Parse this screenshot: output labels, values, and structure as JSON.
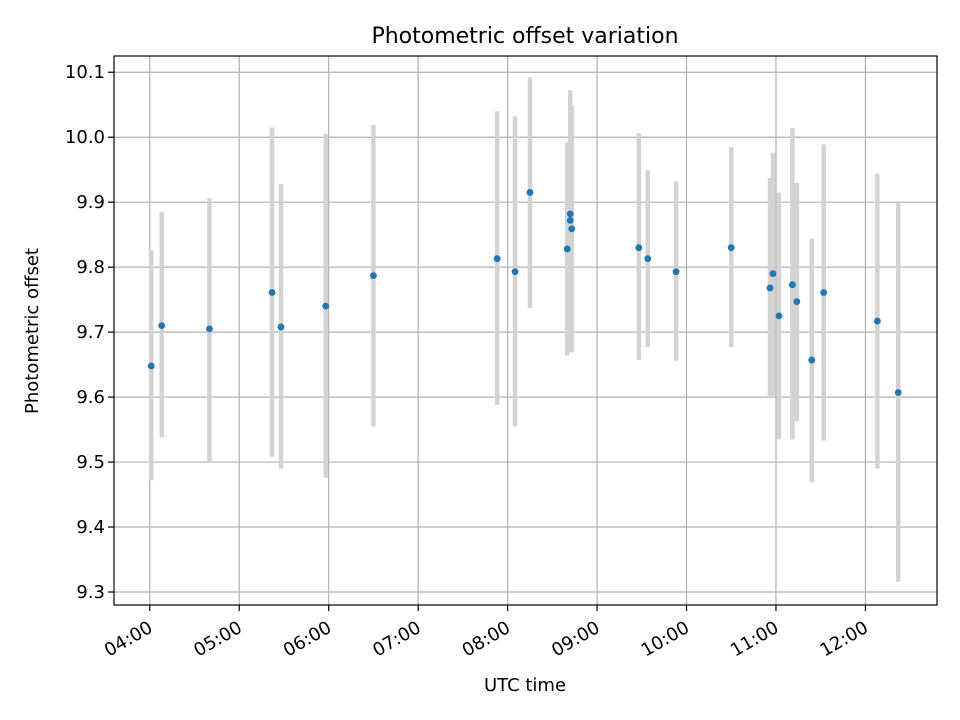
{
  "chart_data": {
    "type": "scatter",
    "title": "Photometric offset variation",
    "xlabel": "UTC time",
    "ylabel": "Photometric offset",
    "grid": true,
    "xlim": [
      "03:36",
      "12:48"
    ],
    "ylim": [
      9.28,
      10.125
    ],
    "x_ticks": [
      "04:00",
      "05:00",
      "06:00",
      "07:00",
      "08:00",
      "09:00",
      "10:00",
      "11:00",
      "12:00"
    ],
    "y_ticks": [
      9.3,
      9.4,
      9.5,
      9.6,
      9.7,
      9.8,
      9.9,
      10.0,
      10.1
    ],
    "y_tick_labels": [
      "9.3",
      "9.4",
      "9.5",
      "9.6",
      "9.7",
      "9.8",
      "9.9",
      "10.0",
      "10.1"
    ],
    "marker_color": "#1f77b4",
    "errorbar_color": "#d3d3d3",
    "series": [
      {
        "points": [
          {
            "x": "04:01",
            "y": 9.648,
            "low": 9.472,
            "high": 9.826
          },
          {
            "x": "04:08",
            "y": 9.71,
            "low": 9.538,
            "high": 9.885
          },
          {
            "x": "04:40",
            "y": 9.705,
            "low": 9.5,
            "high": 9.906
          },
          {
            "x": "05:22",
            "y": 9.761,
            "low": 9.508,
            "high": 10.015
          },
          {
            "x": "05:28",
            "y": 9.708,
            "low": 9.49,
            "high": 9.928
          },
          {
            "x": "05:58",
            "y": 9.74,
            "low": 9.476,
            "high": 10.005
          },
          {
            "x": "06:30",
            "y": 9.787,
            "low": 9.555,
            "high": 10.019
          },
          {
            "x": "07:53",
            "y": 9.813,
            "low": 9.588,
            "high": 10.04
          },
          {
            "x": "08:05",
            "y": 9.793,
            "low": 9.555,
            "high": 10.032
          },
          {
            "x": "08:15",
            "y": 9.915,
            "low": 9.737,
            "high": 10.092
          },
          {
            "x": "08:40",
            "y": 9.828,
            "low": 9.664,
            "high": 9.992
          },
          {
            "x": "08:42",
            "y": 9.882,
            "low": 9.69,
            "high": 10.072
          },
          {
            "x": "08:42",
            "y": 9.872,
            "low": 9.705,
            "high": 10.04
          },
          {
            "x": "08:43",
            "y": 9.859,
            "low": 9.669,
            "high": 10.049
          },
          {
            "x": "09:28",
            "y": 9.83,
            "low": 9.657,
            "high": 10.006
          },
          {
            "x": "09:34",
            "y": 9.813,
            "low": 9.677,
            "high": 9.949
          },
          {
            "x": "09:53",
            "y": 9.793,
            "low": 9.656,
            "high": 9.932
          },
          {
            "x": "10:30",
            "y": 9.83,
            "low": 9.677,
            "high": 9.985
          },
          {
            "x": "10:56",
            "y": 9.768,
            "low": 9.598,
            "high": 9.937
          },
          {
            "x": "10:58",
            "y": 9.79,
            "low": 9.602,
            "high": 9.976
          },
          {
            "x": "11:02",
            "y": 9.725,
            "low": 9.535,
            "high": 9.915
          },
          {
            "x": "11:11",
            "y": 9.773,
            "low": 9.535,
            "high": 10.014
          },
          {
            "x": "11:14",
            "y": 9.747,
            "low": 9.563,
            "high": 9.93
          },
          {
            "x": "11:24",
            "y": 9.657,
            "low": 9.469,
            "high": 9.844
          },
          {
            "x": "11:32",
            "y": 9.761,
            "low": 9.533,
            "high": 9.989
          },
          {
            "x": "12:08",
            "y": 9.717,
            "low": 9.49,
            "high": 9.944
          },
          {
            "x": "12:22",
            "y": 9.607,
            "low": 9.316,
            "high": 9.899
          }
        ]
      }
    ]
  }
}
